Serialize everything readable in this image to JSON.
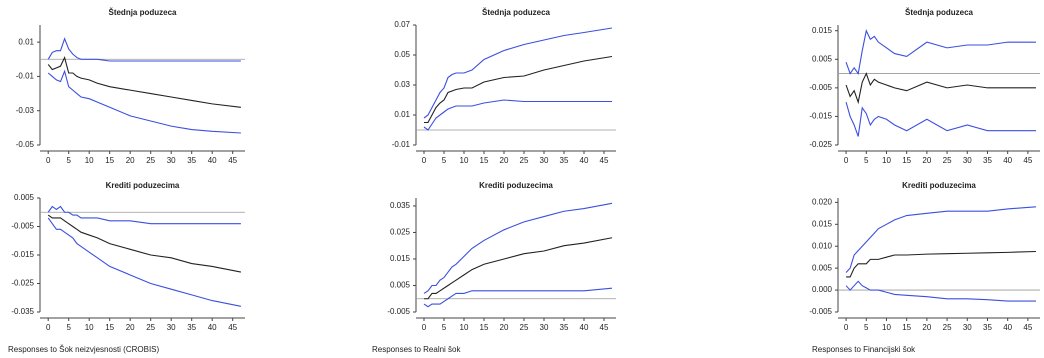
{
  "chart_data": [
    {
      "type": "line",
      "title": "Štednja poduzeca",
      "x": [
        0,
        1,
        2,
        3,
        4,
        5,
        6,
        7,
        8,
        10,
        12,
        15,
        20,
        25,
        30,
        35,
        40,
        47
      ],
      "xlim": [
        -2,
        48
      ],
      "xticks": [
        0,
        5,
        10,
        15,
        20,
        25,
        30,
        35,
        40,
        45
      ],
      "ylim": [
        -0.05,
        0.02
      ],
      "yticks": [
        0.01,
        -0.01,
        -0.03,
        -0.05
      ],
      "zero_line": true,
      "series": [
        {
          "color": "#3b4fe0",
          "values": [
            0.0,
            0.004,
            0.005,
            0.005,
            0.012,
            0.006,
            0.003,
            0.001,
            0.0,
            0.0,
            0.0,
            -0.001,
            -0.001,
            -0.001,
            -0.001,
            -0.001,
            -0.001,
            -0.001
          ]
        },
        {
          "color": "#222222",
          "values": [
            -0.003,
            -0.006,
            -0.005,
            -0.004,
            0.001,
            -0.008,
            -0.008,
            -0.01,
            -0.011,
            -0.012,
            -0.014,
            -0.016,
            -0.018,
            -0.02,
            -0.022,
            -0.024,
            -0.026,
            -0.028
          ]
        },
        {
          "color": "#3b4fe0",
          "values": [
            -0.008,
            -0.01,
            -0.012,
            -0.013,
            -0.007,
            -0.016,
            -0.018,
            -0.02,
            -0.022,
            -0.023,
            -0.025,
            -0.028,
            -0.033,
            -0.036,
            -0.039,
            -0.041,
            -0.042,
            -0.043
          ]
        }
      ]
    },
    {
      "type": "line",
      "title": "Štednja poduzeca",
      "x": [
        0,
        1,
        2,
        3,
        4,
        5,
        6,
        7,
        8,
        10,
        12,
        15,
        20,
        25,
        30,
        35,
        40,
        47
      ],
      "xlim": [
        -2,
        48
      ],
      "xticks": [
        0,
        5,
        10,
        15,
        20,
        25,
        30,
        35,
        40,
        45
      ],
      "ylim": [
        -0.01,
        0.07
      ],
      "yticks": [
        0.07,
        0.05,
        0.03,
        0.01,
        -0.01
      ],
      "zero_line": true,
      "series": [
        {
          "color": "#3b4fe0",
          "values": [
            0.008,
            0.01,
            0.015,
            0.02,
            0.025,
            0.028,
            0.035,
            0.037,
            0.038,
            0.038,
            0.04,
            0.047,
            0.053,
            0.057,
            0.06,
            0.063,
            0.065,
            0.068
          ]
        },
        {
          "color": "#222222",
          "values": [
            0.005,
            0.005,
            0.01,
            0.015,
            0.018,
            0.02,
            0.025,
            0.026,
            0.027,
            0.028,
            0.028,
            0.032,
            0.035,
            0.036,
            0.04,
            0.043,
            0.046,
            0.049
          ]
        },
        {
          "color": "#3b4fe0",
          "values": [
            0.002,
            0.0,
            0.004,
            0.008,
            0.01,
            0.012,
            0.014,
            0.015,
            0.016,
            0.016,
            0.016,
            0.018,
            0.02,
            0.019,
            0.019,
            0.019,
            0.019,
            0.019
          ]
        }
      ]
    },
    {
      "type": "line",
      "title": "Štednja poduzeca",
      "x": [
        0,
        1,
        2,
        3,
        4,
        5,
        6,
        7,
        8,
        10,
        12,
        15,
        20,
        25,
        30,
        35,
        40,
        47
      ],
      "xlim": [
        -2,
        48
      ],
      "xticks": [
        0,
        5,
        10,
        15,
        20,
        25,
        30,
        35,
        40,
        45
      ],
      "ylim": [
        -0.025,
        0.017
      ],
      "yticks": [
        0.015,
        0.005,
        -0.005,
        -0.015,
        -0.025
      ],
      "zero_line": true,
      "series": [
        {
          "color": "#3b4fe0",
          "values": [
            0.004,
            0.0,
            0.002,
            0.0,
            0.008,
            0.015,
            0.012,
            0.013,
            0.011,
            0.009,
            0.007,
            0.006,
            0.011,
            0.009,
            0.01,
            0.01,
            0.011,
            0.011
          ]
        },
        {
          "color": "#222222",
          "values": [
            -0.004,
            -0.008,
            -0.006,
            -0.01,
            -0.003,
            0.0,
            -0.004,
            -0.002,
            -0.003,
            -0.004,
            -0.005,
            -0.006,
            -0.003,
            -0.005,
            -0.004,
            -0.005,
            -0.005,
            -0.005
          ]
        },
        {
          "color": "#3b4fe0",
          "values": [
            -0.01,
            -0.015,
            -0.018,
            -0.022,
            -0.012,
            -0.014,
            -0.018,
            -0.016,
            -0.015,
            -0.016,
            -0.018,
            -0.02,
            -0.016,
            -0.02,
            -0.018,
            -0.02,
            -0.02,
            -0.02
          ]
        }
      ]
    },
    {
      "type": "line",
      "title": "Krediti poduzecima",
      "x": [
        0,
        1,
        2,
        3,
        4,
        5,
        6,
        7,
        8,
        10,
        12,
        15,
        20,
        25,
        30,
        35,
        40,
        47
      ],
      "xlim": [
        -2,
        48
      ],
      "xticks": [
        0,
        5,
        10,
        15,
        20,
        25,
        30,
        35,
        40,
        45
      ],
      "ylim": [
        -0.035,
        0.005
      ],
      "yticks": [
        0.005,
        -0.005,
        -0.015,
        -0.025,
        -0.035
      ],
      "zero_line": true,
      "series": [
        {
          "color": "#3b4fe0",
          "values": [
            0.0,
            0.002,
            0.001,
            0.002,
            0.0,
            0.0,
            -0.001,
            -0.001,
            -0.002,
            -0.002,
            -0.002,
            -0.003,
            -0.003,
            -0.004,
            -0.004,
            -0.004,
            -0.004,
            -0.004
          ]
        },
        {
          "color": "#222222",
          "values": [
            -0.001,
            -0.002,
            -0.002,
            -0.002,
            -0.003,
            -0.004,
            -0.005,
            -0.006,
            -0.007,
            -0.008,
            -0.009,
            -0.011,
            -0.013,
            -0.015,
            -0.016,
            -0.018,
            -0.019,
            -0.021
          ]
        },
        {
          "color": "#3b4fe0",
          "values": [
            -0.002,
            -0.004,
            -0.006,
            -0.006,
            -0.007,
            -0.008,
            -0.009,
            -0.011,
            -0.012,
            -0.014,
            -0.016,
            -0.019,
            -0.022,
            -0.025,
            -0.027,
            -0.029,
            -0.031,
            -0.033
          ]
        }
      ]
    },
    {
      "type": "line",
      "title": "Krediti poduzecima",
      "x": [
        0,
        1,
        2,
        3,
        4,
        5,
        6,
        7,
        8,
        10,
        12,
        15,
        20,
        25,
        30,
        35,
        40,
        47
      ],
      "xlim": [
        -2,
        48
      ],
      "xticks": [
        0,
        5,
        10,
        15,
        20,
        25,
        30,
        35,
        40,
        45
      ],
      "ylim": [
        -0.005,
        0.038
      ],
      "yticks": [
        0.035,
        0.025,
        0.015,
        0.005,
        -0.005
      ],
      "zero_line": true,
      "series": [
        {
          "color": "#3b4fe0",
          "values": [
            0.002,
            0.003,
            0.005,
            0.005,
            0.007,
            0.008,
            0.01,
            0.012,
            0.013,
            0.016,
            0.019,
            0.022,
            0.026,
            0.029,
            0.031,
            0.033,
            0.034,
            0.036
          ]
        },
        {
          "color": "#222222",
          "values": [
            0.0,
            0.0,
            0.002,
            0.002,
            0.003,
            0.004,
            0.005,
            0.006,
            0.007,
            0.009,
            0.011,
            0.013,
            0.015,
            0.017,
            0.018,
            0.02,
            0.021,
            0.023
          ]
        },
        {
          "color": "#3b4fe0",
          "values": [
            -0.002,
            -0.003,
            -0.002,
            -0.002,
            -0.002,
            -0.001,
            0.0,
            0.001,
            0.002,
            0.002,
            0.003,
            0.003,
            0.003,
            0.003,
            0.003,
            0.003,
            0.003,
            0.004
          ]
        }
      ]
    },
    {
      "type": "line",
      "title": "Krediti poduzecima",
      "x": [
        0,
        1,
        2,
        3,
        4,
        5,
        6,
        7,
        8,
        10,
        12,
        15,
        20,
        25,
        30,
        35,
        40,
        47
      ],
      "xlim": [
        -2,
        48
      ],
      "xticks": [
        0,
        5,
        10,
        15,
        20,
        25,
        30,
        35,
        40,
        45
      ],
      "ylim": [
        -0.005,
        0.021
      ],
      "yticks": [
        {
          "value": 0.02,
          "label": "0.020"
        },
        0.015,
        {
          "value": 0.01,
          "label": "0.010"
        },
        0.005,
        {
          "value": 0,
          "label": "0.000"
        },
        -0.005
      ],
      "zero_line": true,
      "series": [
        {
          "color": "#3b4fe0",
          "values": [
            0.004,
            0.005,
            0.008,
            0.009,
            0.01,
            0.011,
            0.012,
            0.013,
            0.014,
            0.015,
            0.016,
            0.017,
            0.0175,
            0.018,
            0.018,
            0.018,
            0.0185,
            0.019
          ]
        },
        {
          "color": "#222222",
          "values": [
            0.003,
            0.003,
            0.005,
            0.006,
            0.006,
            0.006,
            0.007,
            0.007,
            0.007,
            0.0075,
            0.008,
            0.008,
            0.0082,
            0.0083,
            0.0084,
            0.0085,
            0.0086,
            0.0088
          ]
        },
        {
          "color": "#3b4fe0",
          "values": [
            0.001,
            0.0,
            0.001,
            0.002,
            0.001,
            0.0005,
            0.0,
            0.0,
            0.0,
            -0.0005,
            -0.001,
            -0.0012,
            -0.0015,
            -0.002,
            -0.002,
            -0.0022,
            -0.0025,
            -0.0025
          ]
        }
      ]
    }
  ],
  "captions": [
    "Responses to Šok neizvjesnosti (CROBIS)",
    "Responses to Realni šok",
    "Responses to Financijski šok"
  ]
}
